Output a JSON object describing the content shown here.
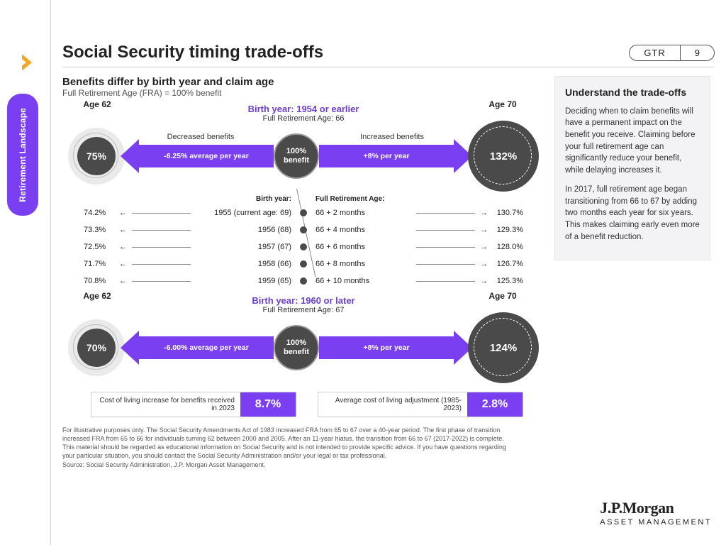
{
  "nav": {
    "sideTab": "Retirement Landscape"
  },
  "header": {
    "title": "Social Security timing trade-offs",
    "badgeL": "GTR",
    "badgeR": "9"
  },
  "sub": {
    "title": "Benefits differ by birth year and claim age",
    "note": "Full Retirement Age (FRA) = 100% benefit"
  },
  "colors": {
    "purple": "#7b3ff2",
    "purpleText": "#6b3fc9",
    "darkGrey": "#4a4a4a",
    "lightGrey": "#cfcfcf",
    "bg": "#ffffff"
  },
  "top": {
    "birthLine": "Birth year: 1954 or earlier",
    "fraLine": "Full Retirement Age: 66",
    "age62Label": "Age 62",
    "age70Label": "Age 70",
    "leftPct": "75%",
    "centerLabel": "100% benefit",
    "rightPct": "132%",
    "decLabel": "Decreased benefits",
    "incLabel": "Increased benefits",
    "leftRate": "-6.25% average per year",
    "rightRate": "+8% per year"
  },
  "mid": {
    "col1Header": "Birth year:",
    "col2Header": "Full Retirement Age:",
    "rows": [
      {
        "lp": "74.2%",
        "by": "1955 (current age: 69)",
        "fra": "66 + 2 months",
        "rp": "130.7%"
      },
      {
        "lp": "73.3%",
        "by": "1956 (68)",
        "fra": "66 + 4 months",
        "rp": "129.3%"
      },
      {
        "lp": "72.5%",
        "by": "1957 (67)",
        "fra": "66 + 6 months",
        "rp": "128.0%"
      },
      {
        "lp": "71.7%",
        "by": "1958 (66)",
        "fra": "66 + 8 months",
        "rp": "126.7%"
      },
      {
        "lp": "70.8%",
        "by": "1959 (65)",
        "fra": "66 + 10 months",
        "rp": "125.3%"
      }
    ]
  },
  "bot": {
    "birthLine": "Birth year: 1960 or later",
    "fraLine": "Full Retirement Age: 67",
    "age62Label": "Age 62",
    "age70Label": "Age 70",
    "leftPct": "70%",
    "centerLabel": "100% benefit",
    "rightPct": "124%",
    "leftRate": "-6.00% average per year",
    "rightRate": "+8% per year"
  },
  "stats": {
    "box1Label": "Cost of living increase for benefits received in 2023",
    "box1Val": "8.7%",
    "box2Label": "Average cost of living adjustment (1985-2023)",
    "box2Val": "2.8%"
  },
  "sidebar": {
    "heading": "Understand the trade-offs",
    "p1": "Deciding when to claim benefits will have a permanent impact on the benefit you receive. Claiming before your full retirement age can significantly reduce your benefit, while delaying increases it.",
    "p2": "In 2017, full retirement age began transitioning from 66 to 67 by adding two months each year for six years. This makes claiming early even more of a benefit reduction."
  },
  "footnote": "For illustrative purposes only. The Social Security Amendments Act of 1983 increased FRA from 65 to 67 over a 40-year period. The first phase of transition increased FRA from 65 to 66 for individuals turning 62 between 2000 and 2005. After an 11-year hiatus, the transition from 66 to 67 (2017-2022) is complete. This material should be regarded as educational information on Social Security and is not intended to provide specific advice. If you have questions regarding your particular situation, you should contact the Social Security Administration and/or your legal or tax professional.\nSource: Social Security Administration, J.P. Morgan Asset Management.",
  "brand": {
    "line1": "J.P.Morgan",
    "line2": "ASSET MANAGEMENT"
  }
}
